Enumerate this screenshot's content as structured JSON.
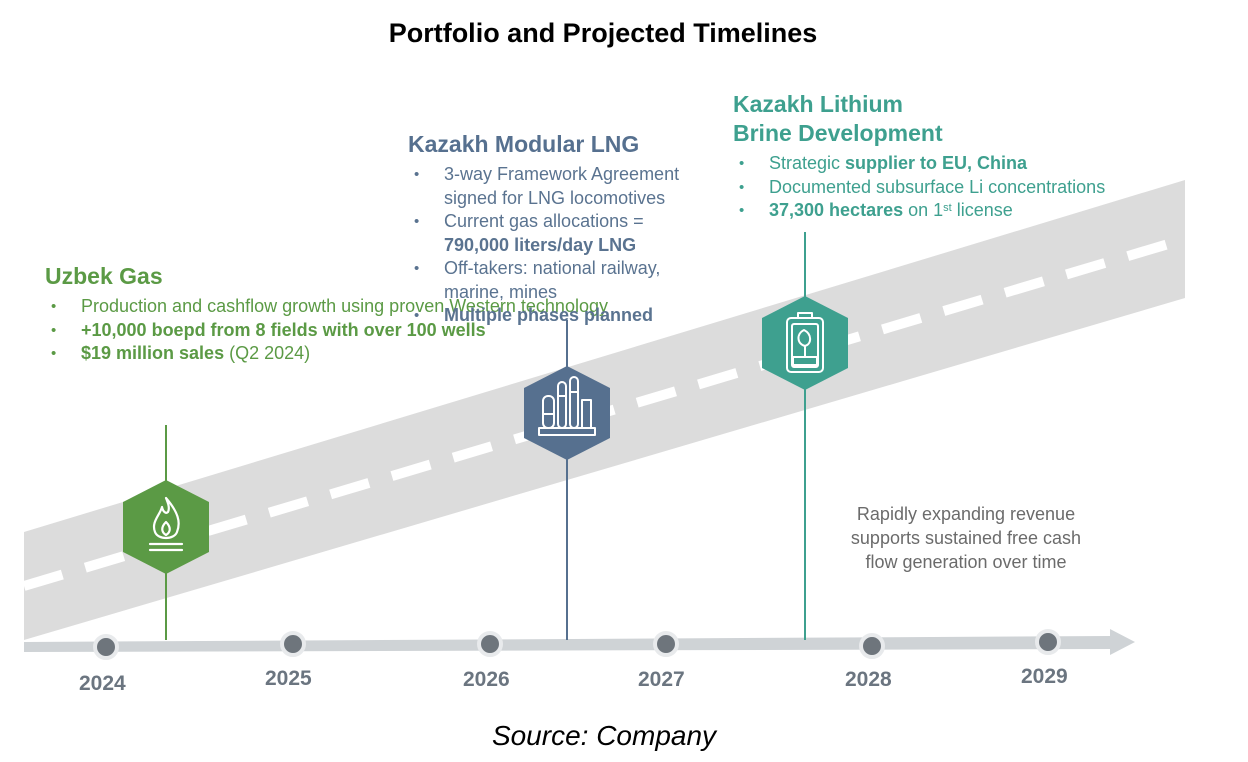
{
  "title": "Portfolio and Projected Timelines",
  "source": "Source: Company",
  "projects": [
    {
      "title": "Uzbek Gas",
      "color": "#5b9a45",
      "icon": "flame-icon",
      "bullets": [
        {
          "text": "Production and cashflow growth using proven Western technology"
        },
        {
          "bold": "+10,000 boepd from 8 fields with over 100 wells"
        },
        {
          "bold": "$19 million sales",
          "after": " (Q2 2024)"
        }
      ]
    },
    {
      "title": "Kazakh Modular LNG",
      "color": "#56708f",
      "icon": "refinery-icon",
      "bullets": [
        {
          "text": "3-way Framework Agreement signed for LNG locomotives"
        },
        {
          "text": "Current gas allocations = ",
          "bold": "790,000 liters/day LNG"
        },
        {
          "text": "Off-takers: national railway, marine, mines"
        },
        {
          "bold": "Multiple phases planned"
        }
      ]
    },
    {
      "title_line1": "Kazakh Lithium",
      "title_line2": "Brine Development",
      "color": "#3ea08f",
      "icon": "battery-leaf-icon",
      "bullets": [
        {
          "text": "Strategic ",
          "bold": "supplier to EU, China"
        },
        {
          "text": "Documented subsurface Li concentrations"
        },
        {
          "bold": "37,300 hectares",
          "after": " on 1",
          "sup": "st",
          "after2": " license"
        }
      ]
    }
  ],
  "note": "Rapidly expanding revenue supports sustained free cash flow generation over time",
  "timeline": {
    "years": [
      "2024",
      "2025",
      "2026",
      "2027",
      "2028",
      "2029"
    ]
  }
}
